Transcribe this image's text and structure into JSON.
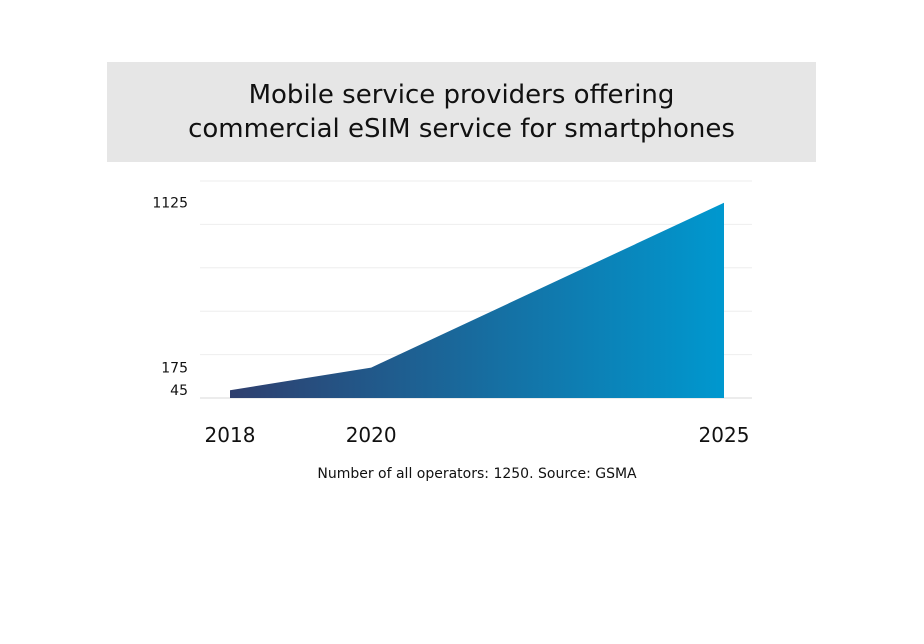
{
  "chart_data": {
    "type": "area",
    "title": "Mobile service providers offering commercial eSIM service for smartphones",
    "title_lines": [
      "Mobile service providers offering",
      "commercial eSIM service for smartphones"
    ],
    "x": [
      "2018",
      "2020",
      "2025"
    ],
    "series": [
      {
        "values": [
          45,
          175,
          1125
        ]
      }
    ],
    "y_tick_labels": [
      "45",
      "175",
      "1125"
    ],
    "xlabel": "",
    "ylabel": "",
    "ylim": [
      0,
      1250
    ],
    "grid": true,
    "legend": "none",
    "gradient": [
      "#2f3f6e",
      "#0098cf"
    ],
    "footnote": "Number of all operators: 1250. Source: GSMA"
  }
}
